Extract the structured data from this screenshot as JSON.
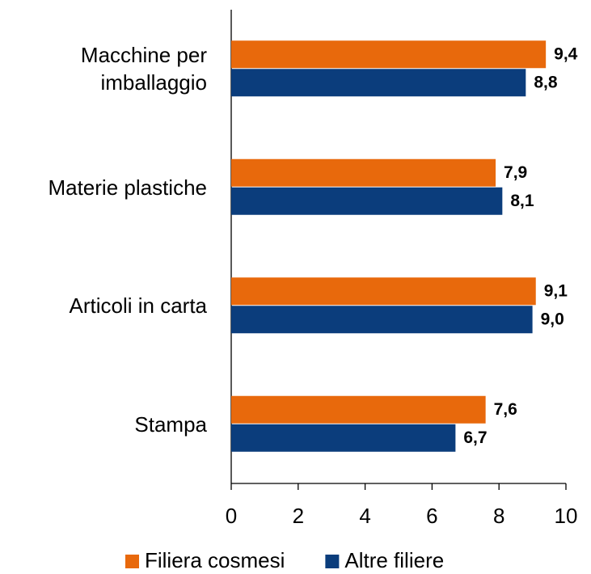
{
  "chart_data": {
    "type": "bar",
    "orientation": "horizontal",
    "categories": [
      "Macchine per imballaggio",
      "Materie plastiche",
      "Articoli in carta",
      "Stampa"
    ],
    "series": [
      {
        "name": "Filiera cosmesi",
        "color": "#E8690C",
        "values": [
          9.4,
          7.9,
          9.1,
          7.6
        ],
        "value_labels": [
          "9,4",
          "7,9",
          "9,1",
          "7,6"
        ]
      },
      {
        "name": "Altre filiere",
        "color": "#0B3D7C",
        "values": [
          8.8,
          8.1,
          9.0,
          6.7
        ],
        "value_labels": [
          "8,8",
          "8,1",
          "9,0",
          "6,7"
        ]
      }
    ],
    "xlim": [
      0,
      10
    ],
    "xticks": [
      0,
      2,
      4,
      6,
      8,
      10
    ],
    "legend": "bottom"
  }
}
